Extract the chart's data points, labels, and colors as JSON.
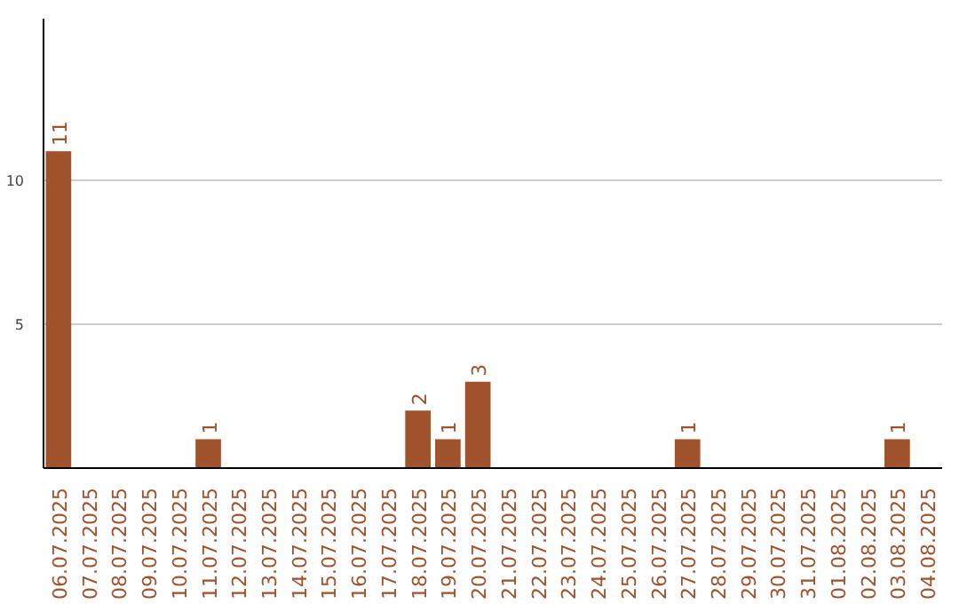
{
  "chart_data": {
    "type": "bar",
    "categories": [
      "06.07.2025",
      "07.07.2025",
      "08.07.2025",
      "09.07.2025",
      "10.07.2025",
      "11.07.2025",
      "12.07.2025",
      "13.07.2025",
      "14.07.2025",
      "15.07.2025",
      "16.07.2025",
      "17.07.2025",
      "18.07.2025",
      "19.07.2025",
      "20.07.2025",
      "21.07.2025",
      "22.07.2025",
      "23.07.2025",
      "24.07.2025",
      "25.07.2025",
      "26.07.2025",
      "27.07.2025",
      "28.07.2025",
      "29.07.2025",
      "30.07.2025",
      "31.07.2025",
      "01.08.2025",
      "02.08.2025",
      "03.08.2025",
      "04.08.2025"
    ],
    "values": [
      11,
      0,
      0,
      0,
      0,
      1,
      0,
      0,
      0,
      0,
      0,
      0,
      2,
      1,
      3,
      0,
      0,
      0,
      0,
      0,
      0,
      1,
      0,
      0,
      0,
      0,
      0,
      0,
      1,
      0
    ],
    "value_labels": [
      "11",
      null,
      null,
      null,
      null,
      "1",
      null,
      null,
      null,
      null,
      null,
      null,
      "2",
      "1",
      "3",
      null,
      null,
      null,
      null,
      null,
      null,
      "1",
      null,
      null,
      null,
      null,
      null,
      null,
      "1",
      null
    ],
    "color": "#a0522d",
    "ylim": [
      0,
      15.6
    ],
    "yticks": [
      5,
      10
    ],
    "grid": "y"
  }
}
